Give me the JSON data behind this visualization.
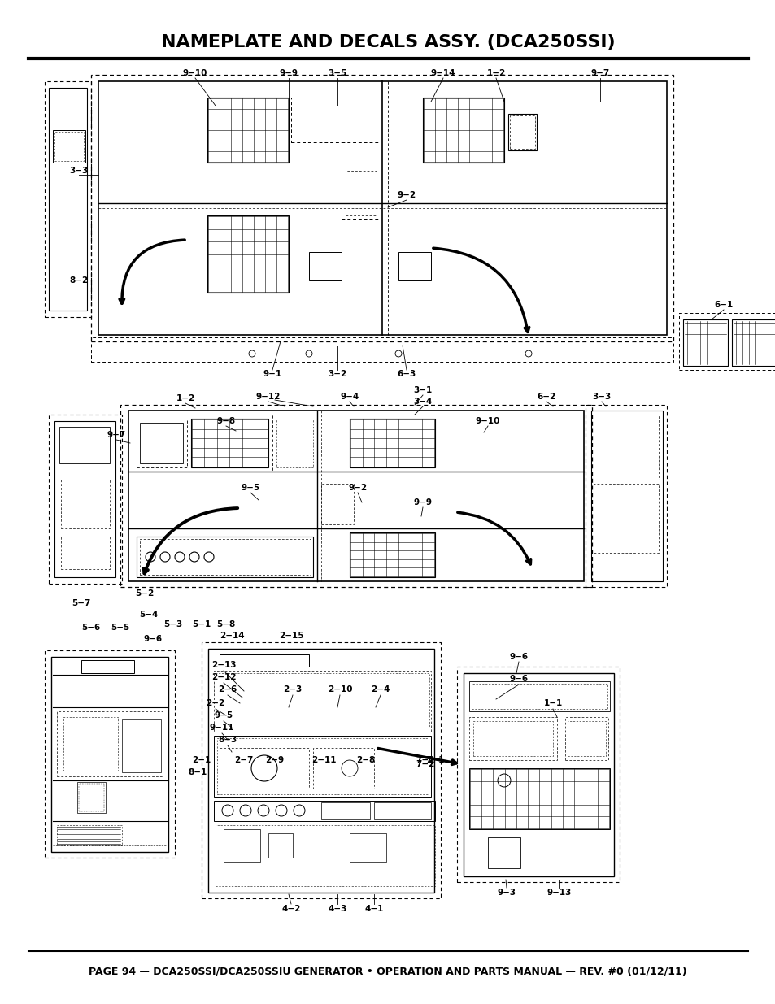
{
  "title": "NAMEPLATE AND DECALS ASSY. (DCA250SSI)",
  "footer": "PAGE 94 — DCA250SSI/DCA250SSIU GENERATOR • OPERATION AND PARTS MANUAL — REV. #0 (01/12/11)",
  "bg_color": "#ffffff",
  "title_fontsize": 16,
  "footer_fontsize": 9,
  "page_width": 9.54,
  "page_height": 12.35
}
